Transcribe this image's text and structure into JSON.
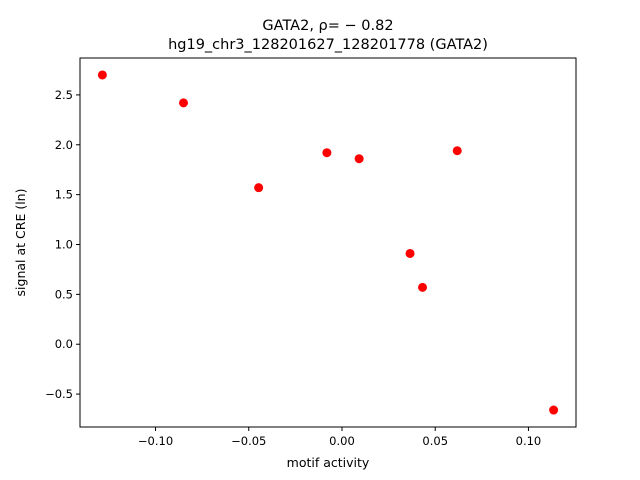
{
  "chart_data": {
    "type": "scatter",
    "title_line1": "GATA2, ρ= − 0.82",
    "title_line2": "hg19_chr3_128201627_128201778 (GATA2)",
    "xlabel": "motif activity",
    "ylabel": "signal at CRE (ln)",
    "xlim": [
      -0.1405,
      0.1255
    ],
    "ylim": [
      -0.83,
      2.87
    ],
    "x_ticks": [
      {
        "value": -0.1,
        "label": "−0.10"
      },
      {
        "value": -0.05,
        "label": "−0.05"
      },
      {
        "value": 0.0,
        "label": "0.00"
      },
      {
        "value": 0.05,
        "label": "0.05"
      },
      {
        "value": 0.1,
        "label": "0.10"
      }
    ],
    "y_ticks": [
      {
        "value": -0.5,
        "label": "−0.5"
      },
      {
        "value": 0.0,
        "label": "0.0"
      },
      {
        "value": 0.5,
        "label": "0.5"
      },
      {
        "value": 1.0,
        "label": "1.0"
      },
      {
        "value": 1.5,
        "label": "1.5"
      },
      {
        "value": 2.0,
        "label": "2.0"
      },
      {
        "value": 2.5,
        "label": "2.5"
      }
    ],
    "marker_color": "#ff0000",
    "grid": false,
    "points": [
      {
        "x": -0.1285,
        "y": 2.7
      },
      {
        "x": -0.085,
        "y": 2.42
      },
      {
        "x": -0.0447,
        "y": 1.57
      },
      {
        "x": -0.0081,
        "y": 1.92
      },
      {
        "x": 0.0092,
        "y": 1.86
      },
      {
        "x": 0.0365,
        "y": 0.91
      },
      {
        "x": 0.0432,
        "y": 0.57
      },
      {
        "x": 0.0618,
        "y": 1.94
      },
      {
        "x": 0.1135,
        "y": -0.66
      }
    ]
  }
}
